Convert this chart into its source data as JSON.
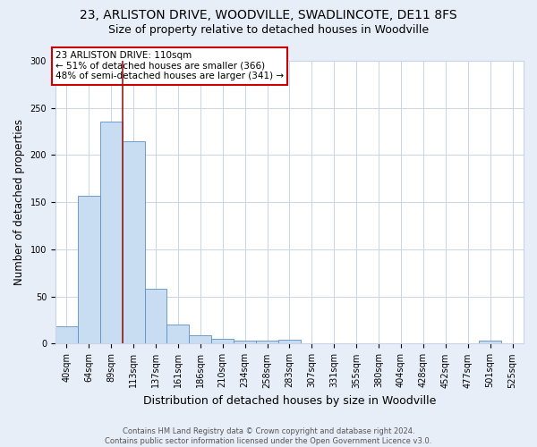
{
  "title": "23, ARLISTON DRIVE, WOODVILLE, SWADLINCOTE, DE11 8FS",
  "subtitle": "Size of property relative to detached houses in Woodville",
  "xlabel": "Distribution of detached houses by size in Woodville",
  "ylabel": "Number of detached properties",
  "bin_labels": [
    "40sqm",
    "64sqm",
    "89sqm",
    "113sqm",
    "137sqm",
    "161sqm",
    "186sqm",
    "210sqm",
    "234sqm",
    "258sqm",
    "283sqm",
    "307sqm",
    "331sqm",
    "355sqm",
    "380sqm",
    "404sqm",
    "428sqm",
    "452sqm",
    "477sqm",
    "501sqm",
    "525sqm"
  ],
  "bar_values": [
    18,
    157,
    235,
    215,
    58,
    20,
    9,
    5,
    3,
    3,
    4,
    0,
    0,
    0,
    0,
    0,
    0,
    0,
    0,
    3,
    0
  ],
  "bar_color": "#c9ddf2",
  "bar_edge_color": "#5b8fc9",
  "vline_x": 2.5,
  "vline_color": "#9b1c1c",
  "annotation_text": "23 ARLISTON DRIVE: 110sqm\n← 51% of detached houses are smaller (366)\n48% of semi-detached houses are larger (341) →",
  "annotation_box_color": "white",
  "annotation_box_edge_color": "#cc0000",
  "ylim": [
    0,
    300
  ],
  "yticks": [
    0,
    50,
    100,
    150,
    200,
    250,
    300
  ],
  "footnote": "Contains HM Land Registry data © Crown copyright and database right 2024.\nContains public sector information licensed under the Open Government Licence v3.0.",
  "bg_color": "#e8eef8",
  "plot_bg_color": "white",
  "grid_color": "#c8d4e8",
  "title_fontsize": 10,
  "subtitle_fontsize": 9,
  "xlabel_fontsize": 9,
  "ylabel_fontsize": 8.5,
  "tick_fontsize": 7,
  "footnote_fontsize": 6,
  "annot_fontsize": 7.5
}
